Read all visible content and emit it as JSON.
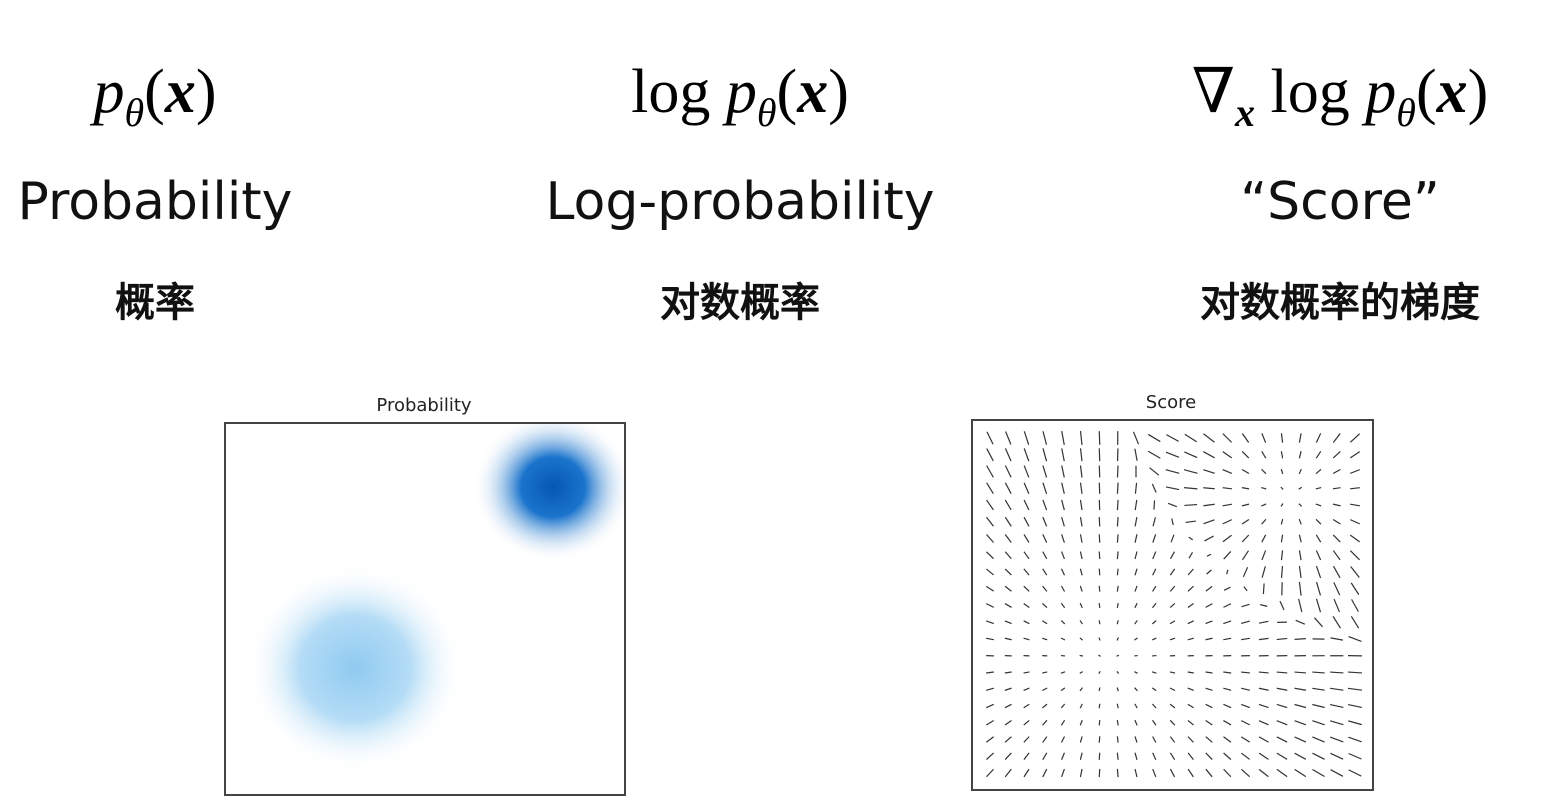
{
  "columns": [
    {
      "formula": [
        {
          "text": "p",
          "style": "italic"
        },
        {
          "text": "θ",
          "style": "sub"
        },
        {
          "text": "(",
          "style": "roman"
        },
        {
          "text": "x",
          "style": "bold-italic"
        },
        {
          "text": ")",
          "style": "roman"
        }
      ],
      "label": "Probability",
      "label_zh": "概率"
    },
    {
      "formula": [
        {
          "text": "log ",
          "style": "roman"
        },
        {
          "text": "p",
          "style": "italic"
        },
        {
          "text": "θ",
          "style": "sub"
        },
        {
          "text": "(",
          "style": "roman"
        },
        {
          "text": "x",
          "style": "bold-italic"
        },
        {
          "text": ")",
          "style": "roman"
        }
      ],
      "label": "Log-probability",
      "label_zh": "对数概率"
    },
    {
      "formula": [
        {
          "text": "∇",
          "style": "roman"
        },
        {
          "text": "x",
          "style": "sub-bold"
        },
        {
          "text": " log ",
          "style": "roman"
        },
        {
          "text": "p",
          "style": "italic"
        },
        {
          "text": "θ",
          "style": "sub"
        },
        {
          "text": "(",
          "style": "roman"
        },
        {
          "text": "x",
          "style": "bold-italic"
        },
        {
          "text": ")",
          "style": "roman"
        }
      ],
      "label": "“Score”",
      "label_zh": "对数概率的梯度"
    }
  ],
  "panels": [
    {
      "title": "Probability"
    },
    {
      "title": "Score"
    }
  ]
}
